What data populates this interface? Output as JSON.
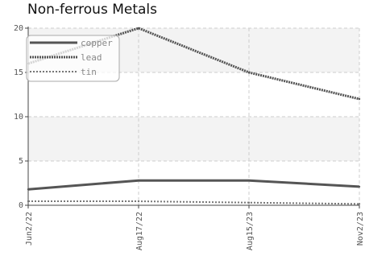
{
  "chart_data": {
    "type": "line",
    "title": "Non-ferrous Metals",
    "xlabel": "",
    "ylabel": "",
    "categories": [
      "Jun2/22",
      "Aug17/22",
      "Aug15/23",
      "Nov2/23"
    ],
    "x_ticks": [
      "Jun2/22",
      "Aug17/22",
      "Aug15/23",
      "Nov2/23"
    ],
    "y_ticks": [
      0,
      5,
      10,
      15,
      20
    ],
    "ylim": [
      0,
      20
    ],
    "grid": true,
    "legend_position": "top-left",
    "series": [
      {
        "name": "copper",
        "values": [
          1.8,
          2.8,
          2.8,
          2.1
        ],
        "color": "#555555",
        "style": "solid"
      },
      {
        "name": "lead",
        "values": [
          16.0,
          20.0,
          15.0,
          12.0
        ],
        "color": "#555555",
        "style": "dotted"
      },
      {
        "name": "tin",
        "values": [
          0.45,
          0.45,
          0.3,
          0.15
        ],
        "color": "#777777",
        "style": "dotted-thin"
      }
    ]
  }
}
